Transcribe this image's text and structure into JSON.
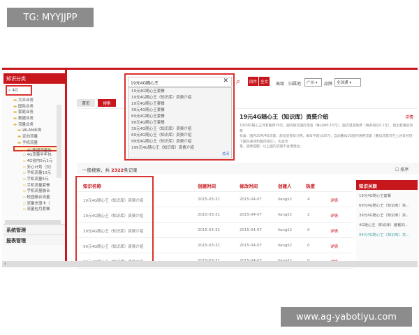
{
  "watermark_top": "TG: MYYJJPP",
  "watermark_bottom": "www.ag-yabotiyu.com",
  "sidebar": {
    "title": "知识分类",
    "search_value": "4G",
    "tree": [
      "大众业务",
      "国际业务",
      "家庭业务",
      "数据业务",
      "流量业务",
      "WLAN业务",
      "定向流量",
      "手机流量",
      "4G数据流量包",
      "4G流量半年包",
      "4G省内0元1元",
      "安心计划（交）",
      "手机流量10元",
      "手机流量5元",
      "手机流量套餐",
      "手机流量融合",
      "校园融合流量",
      "流量充值卡（",
      "流量包月套餐"
    ],
    "menus": [
      "系统管理",
      "报表管理"
    ]
  },
  "tabs": [
    {
      "label": "首页"
    },
    {
      "label": "搜索"
    }
  ],
  "search": {
    "value": "19元4G随心王",
    "buttons": [
      "同件",
      "全文"
    ],
    "advanced": "高级",
    "region_label": "归属地",
    "region_value": "广州",
    "brand_label": "品牌",
    "brand_value": "全球通",
    "suggestions": [
      "19元4G随心王套餐",
      "19元4G随心王（知识库）资费介绍",
      "19元4G随心王套餐",
      "39元4G随心王套餐",
      "69元4G随心王套餐",
      "99元4G随心王套餐",
      "39元4G随心王（知识库）资费介绍",
      "69元4G随心王（知识库）资费介绍",
      "99元4G随心王（知识库）资费介绍",
      "199元4G随心王（知识库）资费介绍"
    ],
    "close": "关闭"
  },
  "result": {
    "title": "19元4G随心王（知识库）资费介绍",
    "detail": "详情",
    "lines": [
      "19元4G随心王月套餐费19元，国内拨打国内电话（每分钟0.15元），国内漫游免费（每条短信0.1元），超出套餐后资费",
      "标准：国内20M/4G流量，超出后按日计费，每日不超过20元；自动叠加1G国内通用流量（叠加流量可在上述日封顶下国内通话和国内短信），包含流",
      "量，遗憾提醒：以上国内流量不含港澳台。"
    ]
  },
  "summary": {
    "prefix": "一般搜索，共 ",
    "count": "2322",
    "suffix": "条记录",
    "sort": "排序"
  },
  "table": {
    "headers": [
      "知识名称",
      "创建时间",
      "修改时间",
      "创建人",
      "热度"
    ],
    "rows": [
      [
        "19元4G随心王（知识库）资费介绍",
        "2015-03-31",
        "2015-04-07",
        "liangli2",
        "4",
        "详情"
      ],
      [
        "19元4G随心王（知识库）资费介绍",
        "2015-03-31",
        "2015-04-07",
        "liangli2",
        "2",
        "详情"
      ],
      [
        "39元4G随心王（知识库）资费介绍",
        "2015-03-31",
        "2015-04-07",
        "liangli2",
        "0",
        "详情"
      ],
      [
        "99元4G随心王（知识库）资费介绍",
        "2015-03-31",
        "2015-04-07",
        "liangli2",
        "0",
        "详情"
      ],
      [
        "99元4G随心王（知识库）资费介绍",
        "2015-03-31",
        "2015-04-07",
        "liangli2",
        "0",
        "详情"
      ]
    ]
  },
  "related": {
    "title": "知识关联",
    "items": [
      "19元4G随心王套餐",
      "69元4G随心王（知识库）资...",
      "39元4G随心王（知识库）资...",
      "4G随心王（知识库）套餐的...",
      "99元4G随心王（知识库）资..."
    ]
  },
  "colors": {
    "accent": "#c8161d"
  }
}
